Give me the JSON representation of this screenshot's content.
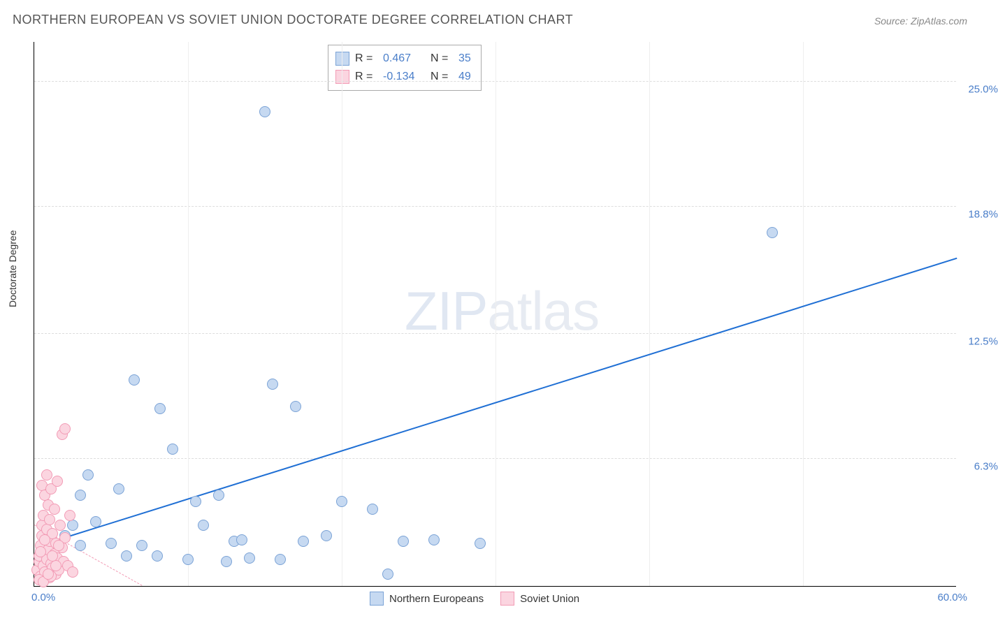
{
  "title": "NORTHERN EUROPEAN VS SOVIET UNION DOCTORATE DEGREE CORRELATION CHART",
  "source_prefix": "Source: ",
  "source_name": "ZipAtlas.com",
  "ylabel": "Doctorate Degree",
  "watermark_bold": "ZIP",
  "watermark_thin": "atlas",
  "chart": {
    "type": "scatter",
    "xlim": [
      0,
      60
    ],
    "ylim": [
      0,
      27
    ],
    "x_ticks": [
      10,
      20,
      30,
      40,
      50
    ],
    "y_grid": [
      6.3,
      12.5,
      18.8,
      25.0
    ],
    "y_labels": [
      "6.3%",
      "12.5%",
      "18.8%",
      "25.0%"
    ],
    "x_min_label": "0.0%",
    "x_max_label": "60.0%",
    "background_color": "#ffffff",
    "grid_color": "#dddddd",
    "axis_color": "#000000",
    "tick_label_color": "#4a7ec9",
    "marker_radius": 8,
    "series": [
      {
        "name": "Northern Europeans",
        "fill": "#c6d9f1",
        "stroke": "#7ba3d6",
        "trend_color": "#1f6fd4",
        "trend_solid": true,
        "trend_start": [
          0.5,
          2.0
        ],
        "trend_end": [
          60,
          16.2
        ],
        "R": "0.467",
        "N": "35",
        "points": [
          [
            2,
            2.5
          ],
          [
            2.5,
            3
          ],
          [
            3,
            2
          ],
          [
            3,
            4.5
          ],
          [
            4,
            3.2
          ],
          [
            5,
            2.1
          ],
          [
            5.5,
            4.8
          ],
          [
            6,
            1.5
          ],
          [
            6.5,
            10.2
          ],
          [
            8,
            1.5
          ],
          [
            8.2,
            8.8
          ],
          [
            9,
            6.8
          ],
          [
            10,
            1.3
          ],
          [
            10.5,
            4.2
          ],
          [
            12,
            4.5
          ],
          [
            12.5,
            1.2
          ],
          [
            13,
            2.2
          ],
          [
            13.5,
            2.3
          ],
          [
            14,
            1.4
          ],
          [
            15,
            23.5
          ],
          [
            15.5,
            10.0
          ],
          [
            16,
            1.3
          ],
          [
            17,
            8.9
          ],
          [
            17.5,
            2.2
          ],
          [
            19,
            2.5
          ],
          [
            20,
            4.2
          ],
          [
            22,
            3.8
          ],
          [
            23,
            0.6
          ],
          [
            24,
            2.2
          ],
          [
            26,
            2.3
          ],
          [
            29,
            2.1
          ],
          [
            48,
            17.5
          ],
          [
            3.5,
            5.5
          ],
          [
            7,
            2.0
          ],
          [
            11,
            3.0
          ]
        ]
      },
      {
        "name": "Soviet Union",
        "fill": "#fbd5e0",
        "stroke": "#f29bb5",
        "trend_color": "#f29bb5",
        "trend_solid": false,
        "trend_start": [
          0,
          3.0
        ],
        "trend_end": [
          7,
          0
        ],
        "R": "-0.134",
        "N": "49",
        "points": [
          [
            0.2,
            0.8
          ],
          [
            0.3,
            1.2
          ],
          [
            0.3,
            1.5
          ],
          [
            0.4,
            0.5
          ],
          [
            0.4,
            2.0
          ],
          [
            0.5,
            2.5
          ],
          [
            0.5,
            3.0
          ],
          [
            0.5,
            5.0
          ],
          [
            0.6,
            1.0
          ],
          [
            0.6,
            3.5
          ],
          [
            0.7,
            0.7
          ],
          [
            0.7,
            4.5
          ],
          [
            0.8,
            1.3
          ],
          [
            0.8,
            2.8
          ],
          [
            0.8,
            5.5
          ],
          [
            0.9,
            1.8
          ],
          [
            0.9,
            4.0
          ],
          [
            1.0,
            0.4
          ],
          [
            1.0,
            2.2
          ],
          [
            1.0,
            3.3
          ],
          [
            1.1,
            1.1
          ],
          [
            1.1,
            4.8
          ],
          [
            1.2,
            0.9
          ],
          [
            1.2,
            2.6
          ],
          [
            1.3,
            1.6
          ],
          [
            1.3,
            3.8
          ],
          [
            1.4,
            0.6
          ],
          [
            1.4,
            2.1
          ],
          [
            1.5,
            1.4
          ],
          [
            1.5,
            5.2
          ],
          [
            1.6,
            0.8
          ],
          [
            1.7,
            3.0
          ],
          [
            1.8,
            1.9
          ],
          [
            1.8,
            7.5
          ],
          [
            1.9,
            1.2
          ],
          [
            2.0,
            2.4
          ],
          [
            2.0,
            7.8
          ],
          [
            2.2,
            1.0
          ],
          [
            2.3,
            3.5
          ],
          [
            2.5,
            0.7
          ],
          [
            0.3,
            0.3
          ],
          [
            0.6,
            0.2
          ],
          [
            1.1,
            0.5
          ],
          [
            1.4,
            1.0
          ],
          [
            0.9,
            0.6
          ],
          [
            0.4,
            1.7
          ],
          [
            1.6,
            2.0
          ],
          [
            0.7,
            2.3
          ],
          [
            1.2,
            1.5
          ]
        ]
      }
    ]
  },
  "stats_labels": {
    "R": "R =",
    "N": "N ="
  },
  "legend_labels": [
    "Northern Europeans",
    "Soviet Union"
  ]
}
